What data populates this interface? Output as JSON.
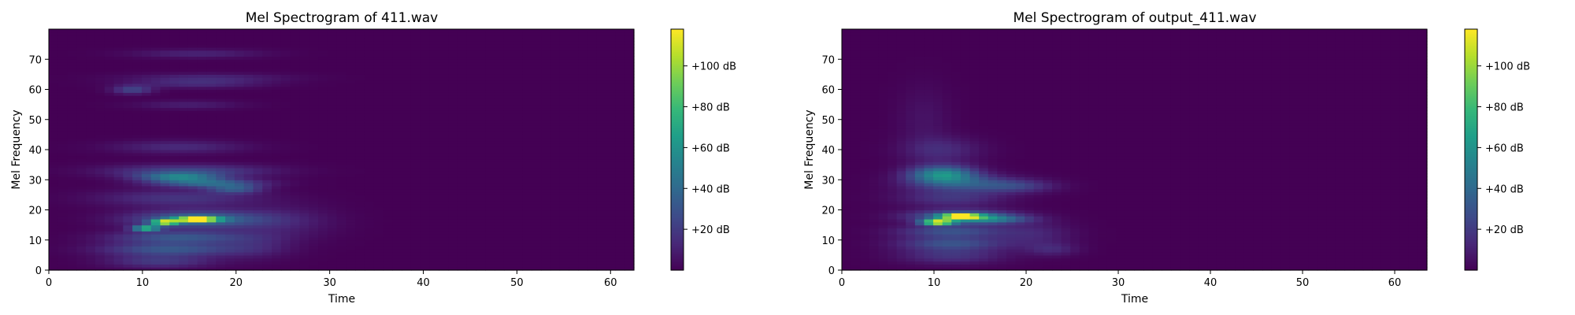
{
  "chart_data": [
    {
      "type": "heatmap",
      "title": "Mel Spectrogram of 411.wav",
      "xlabel": "Time",
      "ylabel": "Mel Frequency",
      "xlim": [
        0,
        62.5
      ],
      "ylim": [
        0,
        80
      ],
      "x_ticks": [
        0,
        10,
        20,
        30,
        40,
        50,
        60
      ],
      "y_ticks": [
        0,
        10,
        20,
        30,
        40,
        50,
        60,
        70
      ],
      "colormap": "viridis",
      "grid": false,
      "colorbar": {
        "range": [
          0,
          118
        ],
        "tick_values": [
          20,
          40,
          60,
          80,
          100
        ],
        "tick_labels": [
          "+20 dB",
          "+40 dB",
          "+60 dB",
          "+80 dB",
          "+100 dB"
        ]
      },
      "blobs": [
        {
          "t": 9,
          "f": 60,
          "tw": 1.5,
          "fw": 1,
          "v": 25
        },
        {
          "t": 16,
          "f": 72,
          "tw": 5,
          "fw": 1,
          "v": 12
        },
        {
          "t": 17,
          "f": 64,
          "tw": 6,
          "fw": 1,
          "v": 12
        },
        {
          "t": 16,
          "f": 62,
          "tw": 5,
          "fw": 1,
          "v": 14
        },
        {
          "t": 15,
          "f": 55,
          "tw": 4,
          "fw": 1,
          "v": 10
        },
        {
          "t": 14,
          "f": 41,
          "tw": 5,
          "fw": 1.5,
          "v": 14
        },
        {
          "t": 15,
          "f": 33,
          "tw": 6,
          "fw": 1.5,
          "v": 25
        },
        {
          "t": 14,
          "f": 31,
          "tw": 3,
          "fw": 1,
          "v": 45
        },
        {
          "t": 17,
          "f": 29,
          "tw": 4,
          "fw": 1,
          "v": 40
        },
        {
          "t": 20,
          "f": 27,
          "tw": 2,
          "fw": 1,
          "v": 30
        },
        {
          "t": 14,
          "f": 24,
          "tw": 6,
          "fw": 2,
          "v": 18
        },
        {
          "t": 16,
          "f": 17,
          "tw": 5,
          "fw": 2,
          "v": 42
        },
        {
          "t": 16,
          "f": 17,
          "tw": 1.6,
          "fw": 0.6,
          "v": 120
        },
        {
          "t": 12.5,
          "f": 16,
          "tw": 1,
          "fw": 0.6,
          "v": 100
        },
        {
          "t": 10.5,
          "f": 14,
          "tw": 1,
          "fw": 0.6,
          "v": 80
        },
        {
          "t": 14,
          "f": 11,
          "tw": 5,
          "fw": 1.5,
          "v": 32
        },
        {
          "t": 13,
          "f": 7,
          "tw": 5,
          "fw": 1.5,
          "v": 32
        },
        {
          "t": 12,
          "f": 3,
          "tw": 4,
          "fw": 1.5,
          "v": 20
        },
        {
          "t": 25,
          "f": 16,
          "tw": 4,
          "fw": 4,
          "v": 10
        },
        {
          "t": 22,
          "f": 8,
          "tw": 3,
          "fw": 3,
          "v": 10
        }
      ]
    },
    {
      "type": "heatmap",
      "title": "Mel Spectrogram of output_411.wav",
      "xlabel": "Time",
      "ylabel": "Mel Frequency",
      "xlim": [
        0,
        63.5
      ],
      "ylim": [
        0,
        80
      ],
      "x_ticks": [
        0,
        10,
        20,
        30,
        40,
        50,
        60
      ],
      "y_ticks": [
        0,
        10,
        20,
        30,
        40,
        50,
        60,
        70
      ],
      "colormap": "viridis",
      "grid": false,
      "colorbar": {
        "range": [
          0,
          118
        ],
        "tick_values": [
          20,
          40,
          60,
          80,
          100
        ],
        "tick_labels": [
          "+20 dB",
          "+40 dB",
          "+60 dB",
          "+80 dB",
          "+100 dB"
        ]
      },
      "blobs": [
        {
          "t": 11,
          "f": 40,
          "tw": 3,
          "fw": 3,
          "v": 14
        },
        {
          "t": 11,
          "f": 32,
          "tw": 2.5,
          "fw": 2,
          "v": 55
        },
        {
          "t": 13,
          "f": 29,
          "tw": 4,
          "fw": 2,
          "v": 28
        },
        {
          "t": 19,
          "f": 28,
          "tw": 3,
          "fw": 1.5,
          "v": 20
        },
        {
          "t": 12,
          "f": 24,
          "tw": 4,
          "fw": 2,
          "v": 18
        },
        {
          "t": 13,
          "f": 18,
          "tw": 4,
          "fw": 1.5,
          "v": 40
        },
        {
          "t": 13,
          "f": 18,
          "tw": 1.5,
          "fw": 0.6,
          "v": 110
        },
        {
          "t": 10.5,
          "f": 16,
          "tw": 1.2,
          "fw": 0.6,
          "v": 115
        },
        {
          "t": 16,
          "f": 17,
          "tw": 3,
          "fw": 1,
          "v": 38
        },
        {
          "t": 12,
          "f": 13,
          "tw": 4,
          "fw": 1.5,
          "v": 30
        },
        {
          "t": 12,
          "f": 9,
          "tw": 4,
          "fw": 1.5,
          "v": 28
        },
        {
          "t": 12,
          "f": 5,
          "tw": 4,
          "fw": 2,
          "v": 18
        },
        {
          "t": 21,
          "f": 12,
          "tw": 3,
          "fw": 3,
          "v": 12
        },
        {
          "t": 23,
          "f": 7,
          "tw": 2,
          "fw": 1.5,
          "v": 12
        },
        {
          "t": 9,
          "f": 50,
          "tw": 2,
          "fw": 8,
          "v": 6
        }
      ]
    }
  ]
}
